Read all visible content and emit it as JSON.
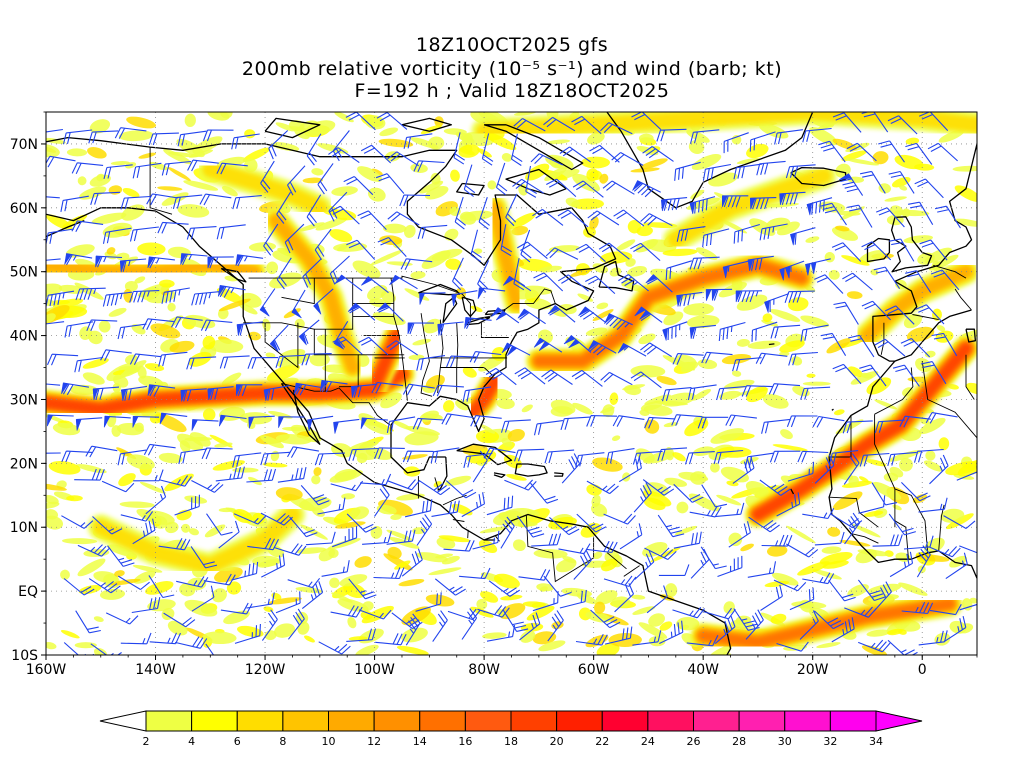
{
  "title": {
    "line1": "18Z10OCT2025 gfs",
    "line2": "200mb relative vorticity (10⁻⁵ s⁻¹) and wind (barb; kt)",
    "line3": "F=192 h ; Valid 18Z18OCT2025"
  },
  "map": {
    "lon_range": [
      -160,
      10
    ],
    "lat_range": [
      -10,
      75
    ],
    "lat_labels": [
      "70N",
      "60N",
      "50N",
      "40N",
      "30N",
      "20N",
      "10N",
      "EQ",
      "10S"
    ],
    "lat_values": [
      70,
      60,
      50,
      40,
      30,
      20,
      10,
      0,
      -10
    ],
    "lon_labels": [
      "160W",
      "140W",
      "120W",
      "100W",
      "80W",
      "60W",
      "40W",
      "20W",
      "0"
    ],
    "lon_values": [
      -160,
      -140,
      -120,
      -100,
      -80,
      -60,
      -40,
      -20,
      0
    ],
    "barb_color": "#2244ee",
    "coast_color": "#000000"
  },
  "colorbar": {
    "labels": [
      "2",
      "4",
      "6",
      "8",
      "10",
      "12",
      "14",
      "16",
      "18",
      "20",
      "22",
      "24",
      "26",
      "28",
      "30",
      "32",
      "34"
    ],
    "colors": [
      "#eeff44",
      "#ffff00",
      "#ffdd00",
      "#ffc400",
      "#ffaa00",
      "#ff9000",
      "#ff7000",
      "#ff5a10",
      "#ff4000",
      "#ff2000",
      "#ff0030",
      "#ff1060",
      "#ff2090",
      "#ff20b0",
      "#ff10d0",
      "#ff00ee"
    ],
    "over_color": "#ff00ff",
    "under_color": "#ffffff"
  },
  "vorticity_bands": [
    {
      "name": "subtropical-jet-pacific",
      "points": [
        [
          -160,
          29.5
        ],
        [
          -150,
          28.5
        ],
        [
          -140,
          30
        ],
        [
          -130,
          30.5
        ],
        [
          -120,
          31
        ],
        [
          -110,
          31
        ],
        [
          -100,
          31.5
        ],
        [
          -95,
          34
        ]
      ],
      "level": 18
    },
    {
      "name": "pacific-jet-50n",
      "points": [
        [
          -160,
          51
        ],
        [
          -150,
          50
        ],
        [
          -140,
          50
        ],
        [
          -130,
          51
        ],
        [
          -122,
          50
        ]
      ],
      "level": 10
    },
    {
      "name": "atlantic-jet",
      "points": [
        [
          -70,
          36
        ],
        [
          -62,
          36
        ],
        [
          -55,
          40
        ],
        [
          -50,
          46
        ],
        [
          -40,
          49
        ],
        [
          -30,
          51
        ],
        [
          -22,
          49
        ]
      ],
      "level": 16
    },
    {
      "name": "atlantic-jet-north",
      "points": [
        [
          -45,
          55
        ],
        [
          -35,
          60
        ],
        [
          -25,
          63
        ],
        [
          -18,
          65
        ]
      ],
      "level": 8
    },
    {
      "name": "greenland-jet",
      "points": [
        [
          -80,
          72
        ],
        [
          -60,
          73
        ],
        [
          -40,
          74
        ],
        [
          -20,
          75
        ],
        [
          0,
          74
        ],
        [
          10,
          73
        ]
      ],
      "level": 6
    },
    {
      "name": "rockies-trough",
      "points": [
        [
          -118,
          58
        ],
        [
          -112,
          52
        ],
        [
          -108,
          46
        ],
        [
          -106,
          40
        ],
        [
          -104,
          35
        ]
      ],
      "level": 12
    },
    {
      "name": "plains-trough",
      "points": [
        [
          -100,
          32
        ],
        [
          -98,
          36
        ],
        [
          -96,
          40
        ]
      ],
      "level": 18
    },
    {
      "name": "east-coast",
      "points": [
        [
          -82,
          28
        ],
        [
          -80,
          30
        ],
        [
          -78,
          33
        ]
      ],
      "level": 20
    },
    {
      "name": "hudson-trough",
      "points": [
        [
          -78,
          60
        ],
        [
          -76,
          52
        ],
        [
          -74,
          45
        ]
      ],
      "level": 10
    },
    {
      "name": "africa-jet",
      "points": [
        [
          -30,
          12
        ],
        [
          -22,
          16
        ],
        [
          -15,
          20
        ],
        [
          -10,
          23
        ],
        [
          -4,
          26
        ],
        [
          0,
          30
        ],
        [
          4,
          34
        ],
        [
          8,
          38
        ]
      ],
      "level": 20
    },
    {
      "name": "iberia",
      "points": [
        [
          -10,
          40
        ],
        [
          -5,
          44
        ],
        [
          0,
          47
        ],
        [
          8,
          50
        ]
      ],
      "level": 10
    },
    {
      "name": "tropical-pacific",
      "points": [
        [
          -150,
          10
        ],
        [
          -140,
          6
        ],
        [
          -130,
          4
        ],
        [
          -120,
          8
        ],
        [
          -115,
          12
        ]
      ],
      "level": 6
    },
    {
      "name": "south-atlantic",
      "points": [
        [
          -40,
          -7
        ],
        [
          -30,
          -8
        ],
        [
          -20,
          -6
        ],
        [
          -10,
          -4
        ],
        [
          5,
          -2
        ]
      ],
      "level": 14
    },
    {
      "name": "nw-canada",
      "points": [
        [
          -130,
          66
        ],
        [
          -122,
          64
        ],
        [
          -115,
          62
        ],
        [
          -110,
          60
        ]
      ],
      "level": 8
    }
  ]
}
